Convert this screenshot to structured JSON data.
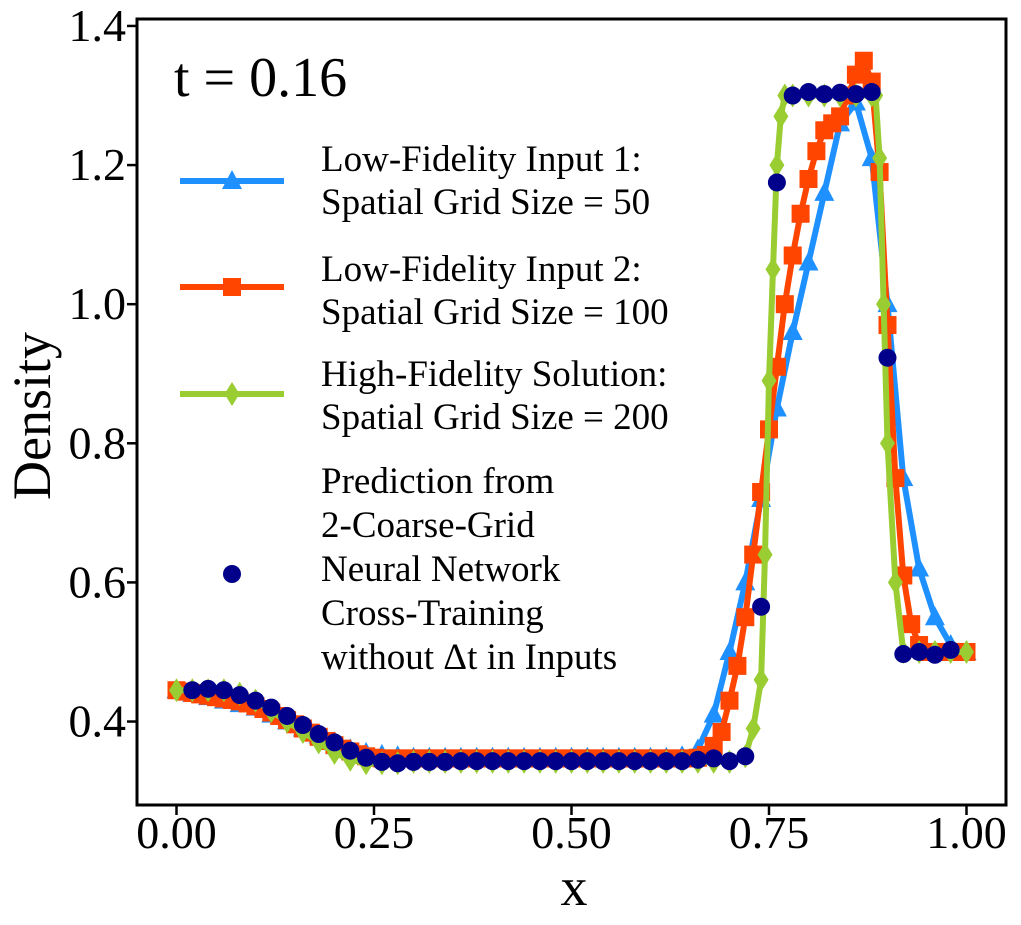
{
  "chart_data": {
    "type": "line",
    "annotation": "t = 0.16",
    "xlabel": "x",
    "ylabel": "Density",
    "xlim": [
      -0.05,
      1.05
    ],
    "ylim": [
      0.28,
      1.41
    ],
    "xticks": [
      0.0,
      0.25,
      0.5,
      0.75,
      1.0
    ],
    "xtick_labels": [
      "0.00",
      "0.25",
      "0.50",
      "0.75",
      "1.00"
    ],
    "yticks": [
      0.4,
      0.6,
      0.8,
      1.0,
      1.2,
      1.4
    ],
    "ytick_labels": [
      "0.4",
      "0.6",
      "0.8",
      "1.0",
      "1.2",
      "1.4"
    ],
    "grid": false,
    "legend_position": "upper-left",
    "series": [
      {
        "name": "Low-Fidelity Input 1:\nSpatial Grid Size = 50",
        "color": "#1e90ff",
        "marker": "triangle",
        "x": [
          0.0,
          0.02,
          0.04,
          0.06,
          0.08,
          0.1,
          0.12,
          0.14,
          0.16,
          0.18,
          0.2,
          0.22,
          0.24,
          0.26,
          0.28,
          0.3,
          0.32,
          0.34,
          0.36,
          0.38,
          0.4,
          0.42,
          0.44,
          0.46,
          0.48,
          0.5,
          0.52,
          0.54,
          0.56,
          0.58,
          0.6,
          0.62,
          0.64,
          0.66,
          0.68,
          0.7,
          0.72,
          0.74,
          0.76,
          0.78,
          0.8,
          0.82,
          0.84,
          0.86,
          0.88,
          0.9,
          0.92,
          0.94,
          0.96,
          0.98,
          1.0
        ],
        "y": [
          0.445,
          0.44,
          0.435,
          0.43,
          0.425,
          0.42,
          0.41,
          0.4,
          0.39,
          0.38,
          0.37,
          0.36,
          0.355,
          0.352,
          0.35,
          0.348,
          0.348,
          0.348,
          0.348,
          0.348,
          0.348,
          0.348,
          0.348,
          0.348,
          0.348,
          0.348,
          0.348,
          0.348,
          0.348,
          0.348,
          0.348,
          0.348,
          0.35,
          0.36,
          0.41,
          0.5,
          0.6,
          0.72,
          0.85,
          0.96,
          1.06,
          1.16,
          1.26,
          1.29,
          1.21,
          1.0,
          0.75,
          0.62,
          0.55,
          0.51,
          0.5
        ]
      },
      {
        "name": "Low-Fidelity Input 2:\nSpatial Grid Size = 100",
        "color": "#ff4500",
        "marker": "square",
        "x": [
          0.0,
          0.01,
          0.02,
          0.03,
          0.04,
          0.05,
          0.06,
          0.07,
          0.08,
          0.09,
          0.1,
          0.11,
          0.12,
          0.13,
          0.14,
          0.15,
          0.16,
          0.17,
          0.18,
          0.19,
          0.2,
          0.21,
          0.22,
          0.23,
          0.24,
          0.25,
          0.26,
          0.27,
          0.28,
          0.29,
          0.3,
          0.31,
          0.32,
          0.33,
          0.34,
          0.35,
          0.36,
          0.37,
          0.38,
          0.39,
          0.4,
          0.41,
          0.42,
          0.43,
          0.44,
          0.45,
          0.46,
          0.47,
          0.48,
          0.49,
          0.5,
          0.51,
          0.52,
          0.53,
          0.54,
          0.55,
          0.56,
          0.57,
          0.58,
          0.59,
          0.6,
          0.61,
          0.62,
          0.63,
          0.64,
          0.65,
          0.66,
          0.67,
          0.68,
          0.69,
          0.7,
          0.71,
          0.72,
          0.73,
          0.74,
          0.75,
          0.76,
          0.77,
          0.78,
          0.79,
          0.8,
          0.81,
          0.82,
          0.83,
          0.84,
          0.85,
          0.86,
          0.87,
          0.88,
          0.89,
          0.9,
          0.91,
          0.92,
          0.93,
          0.94,
          0.95,
          0.96,
          0.97,
          0.98,
          0.99,
          1.0
        ],
        "y": [
          0.445,
          0.443,
          0.441,
          0.439,
          0.437,
          0.435,
          0.433,
          0.431,
          0.429,
          0.426,
          0.422,
          0.418,
          0.413,
          0.408,
          0.402,
          0.396,
          0.39,
          0.384,
          0.378,
          0.372,
          0.366,
          0.361,
          0.357,
          0.353,
          0.35,
          0.348,
          0.347,
          0.347,
          0.347,
          0.347,
          0.347,
          0.347,
          0.347,
          0.347,
          0.347,
          0.347,
          0.347,
          0.347,
          0.347,
          0.347,
          0.347,
          0.347,
          0.347,
          0.347,
          0.347,
          0.347,
          0.347,
          0.347,
          0.347,
          0.347,
          0.347,
          0.347,
          0.347,
          0.347,
          0.347,
          0.347,
          0.347,
          0.347,
          0.347,
          0.347,
          0.347,
          0.347,
          0.347,
          0.347,
          0.347,
          0.347,
          0.348,
          0.352,
          0.365,
          0.385,
          0.43,
          0.48,
          0.55,
          0.64,
          0.73,
          0.82,
          0.91,
          1.0,
          1.07,
          1.13,
          1.18,
          1.22,
          1.25,
          1.26,
          1.27,
          1.3,
          1.33,
          1.35,
          1.32,
          1.19,
          0.97,
          0.75,
          0.61,
          0.54,
          0.51,
          0.5,
          0.5,
          0.5,
          0.5,
          0.5,
          0.5
        ]
      },
      {
        "name": "High-Fidelity Solution:\nSpatial Grid Size = 200",
        "color": "#9acd32",
        "marker": "diamond",
        "x": [
          0.0,
          0.02,
          0.04,
          0.06,
          0.08,
          0.1,
          0.12,
          0.14,
          0.16,
          0.18,
          0.2,
          0.22,
          0.24,
          0.26,
          0.28,
          0.3,
          0.32,
          0.34,
          0.36,
          0.38,
          0.4,
          0.42,
          0.44,
          0.46,
          0.48,
          0.5,
          0.52,
          0.54,
          0.56,
          0.58,
          0.6,
          0.62,
          0.64,
          0.66,
          0.68,
          0.7,
          0.72,
          0.73,
          0.74,
          0.745,
          0.75,
          0.755,
          0.76,
          0.765,
          0.77,
          0.78,
          0.8,
          0.82,
          0.84,
          0.86,
          0.88,
          0.885,
          0.89,
          0.895,
          0.9,
          0.91,
          0.92,
          0.94,
          0.96,
          0.98,
          1.0
        ],
        "y": [
          0.445,
          0.445,
          0.445,
          0.445,
          0.44,
          0.43,
          0.415,
          0.4,
          0.385,
          0.37,
          0.355,
          0.345,
          0.34,
          0.34,
          0.34,
          0.342,
          0.342,
          0.342,
          0.342,
          0.342,
          0.342,
          0.342,
          0.342,
          0.342,
          0.342,
          0.342,
          0.342,
          0.342,
          0.342,
          0.342,
          0.342,
          0.342,
          0.342,
          0.342,
          0.342,
          0.342,
          0.35,
          0.39,
          0.46,
          0.64,
          0.89,
          1.05,
          1.2,
          1.27,
          1.3,
          1.3,
          1.3,
          1.3,
          1.3,
          1.3,
          1.3,
          1.3,
          1.21,
          1.0,
          0.8,
          0.6,
          0.5,
          0.5,
          0.5,
          0.5,
          0.5
        ]
      },
      {
        "name": "Prediction from\n2-Coarse-Grid\nNeural Network\nCross-Training\nwithout Δt in Inputs",
        "color": "#00008b",
        "marker": "circle",
        "x": [
          0.02,
          0.04,
          0.06,
          0.08,
          0.1,
          0.12,
          0.14,
          0.16,
          0.18,
          0.2,
          0.22,
          0.24,
          0.26,
          0.28,
          0.3,
          0.32,
          0.34,
          0.36,
          0.38,
          0.4,
          0.42,
          0.44,
          0.46,
          0.48,
          0.5,
          0.52,
          0.54,
          0.56,
          0.58,
          0.6,
          0.62,
          0.64,
          0.66,
          0.68,
          0.7,
          0.72,
          0.74,
          0.76,
          0.78,
          0.8,
          0.82,
          0.84,
          0.86,
          0.88,
          0.9,
          0.92,
          0.94,
          0.96,
          0.98
        ],
        "y": [
          0.445,
          0.447,
          0.445,
          0.438,
          0.43,
          0.42,
          0.408,
          0.395,
          0.382,
          0.37,
          0.358,
          0.348,
          0.342,
          0.34,
          0.342,
          0.342,
          0.342,
          0.343,
          0.343,
          0.343,
          0.343,
          0.343,
          0.343,
          0.343,
          0.343,
          0.343,
          0.343,
          0.343,
          0.343,
          0.343,
          0.343,
          0.343,
          0.345,
          0.347,
          0.343,
          0.35,
          0.565,
          1.175,
          1.3,
          1.305,
          1.302,
          1.304,
          1.302,
          1.305,
          0.923,
          0.497,
          0.5,
          0.496,
          0.503
        ]
      }
    ]
  }
}
